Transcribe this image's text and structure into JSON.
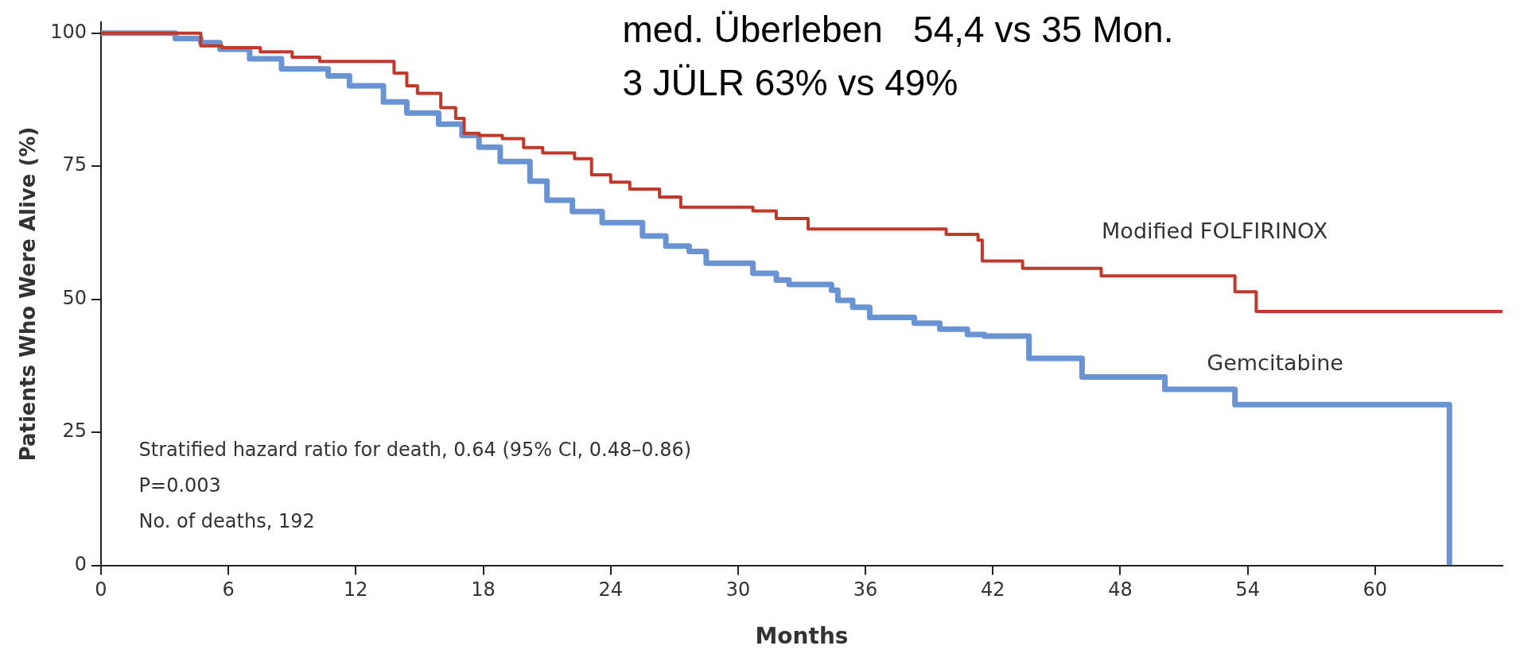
{
  "chart_data": {
    "type": "step",
    "xlabel": "Months",
    "ylabel": "Patients Who Were Alive (%)",
    "xlim": [
      0,
      66
    ],
    "ylim": [
      0,
      102
    ],
    "xticks": [
      0,
      6,
      12,
      18,
      24,
      30,
      36,
      42,
      48,
      54,
      60
    ],
    "yticks": [
      0,
      25,
      50,
      75,
      100
    ],
    "grid": false,
    "legend": false,
    "marker": "none",
    "line_style": "solid",
    "annotations": [
      "med. Überleben   54,4 vs 35 Mon.",
      "3 JÜLR 63% vs 49%",
      "Stratified hazard ratio for death, 0.64 (95% CI, 0.48–0.86)",
      "P=0.003",
      "No. of deaths, 192"
    ],
    "series": [
      {
        "name": "Modified FOLFIRINOX",
        "color": "#c0392b",
        "x": [
          0,
          4.7,
          5.7,
          7.5,
          9.0,
          10.3,
          13.8,
          14.4,
          14.9,
          16,
          16.7,
          17.1,
          17.8,
          18.9,
          19.9,
          20.8,
          22.3,
          23.1,
          24,
          24.9,
          26.3,
          27.3,
          30.7,
          31.8,
          33.3,
          39.8,
          41.3,
          41.5,
          43.4,
          47.1,
          53.4,
          54.4,
          66
        ],
        "values": [
          100,
          97.6,
          97.3,
          96.5,
          95.5,
          94.7,
          92.5,
          90.1,
          88.7,
          86,
          84,
          81.2,
          80.8,
          80.2,
          78.5,
          77.5,
          76.4,
          73.4,
          72,
          70.7,
          69.2,
          67.3,
          66.6,
          65.2,
          63.2,
          62.2,
          61.1,
          57.2,
          55.8,
          54.4,
          51.4,
          47.7,
          47.7
        ]
      },
      {
        "name": "Gemcitabine",
        "color": "#6a93d4",
        "x": [
          0,
          3.5,
          4.7,
          5.6,
          7.0,
          8.5,
          10.7,
          11.7,
          13.3,
          14.4,
          15.9,
          17,
          17.8,
          18.8,
          20.2,
          21,
          22.2,
          23.6,
          25.5,
          26.6,
          27.7,
          28.5,
          30.7,
          31.8,
          32.4,
          34.4,
          34.7,
          35.4,
          36.2,
          38.3,
          39.5,
          40.8,
          41.6,
          43.7,
          46.2,
          50.1,
          53.4,
          63.5
        ],
        "values": [
          100,
          99,
          98.2,
          97,
          95.2,
          93.3,
          92,
          90.1,
          87.1,
          85,
          82.9,
          80.8,
          78.6,
          75.9,
          72.2,
          68.6,
          66.5,
          64.4,
          61.9,
          60,
          59,
          56.8,
          54.9,
          53.6,
          52.8,
          51.7,
          49.8,
          48.5,
          46.6,
          45.5,
          44.4,
          43.4,
          43.1,
          38.9,
          35.4,
          33.1,
          30.2,
          0
        ]
      }
    ]
  }
}
